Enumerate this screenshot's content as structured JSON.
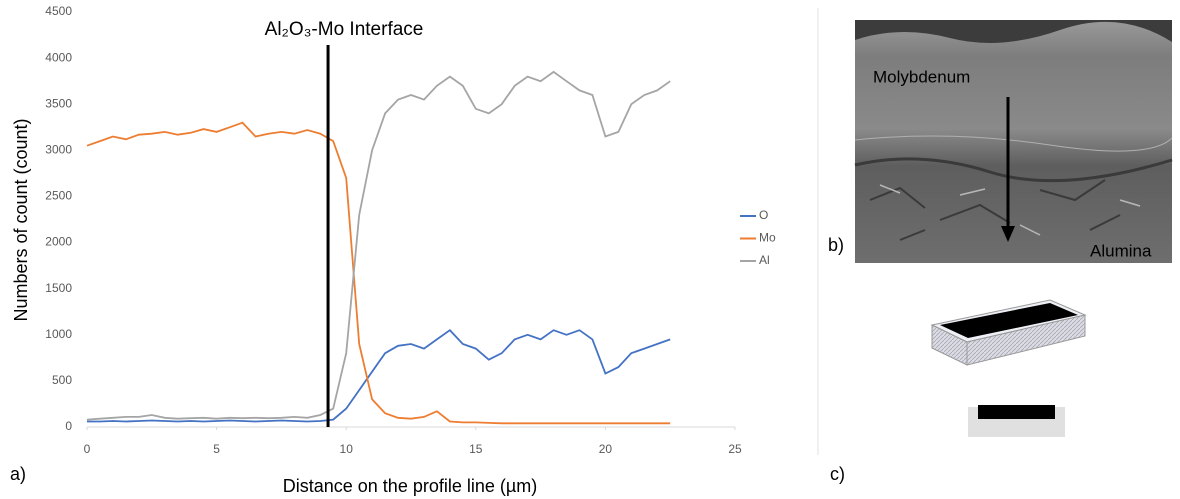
{
  "chart_data": {
    "type": "line",
    "annotation": "Al₂O₃-Mo Interface",
    "interface_x": 9.3,
    "x_label": "Distance on the profile line (µm)",
    "y_label": "Numbers of count (count)",
    "x": [
      0,
      0.5,
      1,
      1.5,
      2,
      2.5,
      3,
      3.5,
      4,
      4.5,
      5,
      5.5,
      6,
      6.5,
      7,
      7.5,
      8,
      8.5,
      9,
      9.5,
      10,
      10.5,
      11,
      11.5,
      12,
      12.5,
      13,
      13.5,
      14,
      14.5,
      15,
      15.5,
      16,
      16.5,
      17,
      17.5,
      18,
      18.5,
      19,
      19.5,
      20,
      20.5,
      21,
      21.5,
      22,
      22.5
    ],
    "series": [
      {
        "name": "O",
        "color": "#4472c4",
        "values": [
          60,
          60,
          65,
          60,
          65,
          70,
          65,
          60,
          65,
          60,
          65,
          70,
          65,
          60,
          65,
          70,
          65,
          60,
          65,
          80,
          200,
          400,
          600,
          800,
          880,
          900,
          850,
          950,
          1050,
          900,
          850,
          730,
          800,
          950,
          1000,
          950,
          1050,
          1000,
          1050,
          950,
          580,
          650,
          800,
          850,
          900,
          950
        ]
      },
      {
        "name": "Mo",
        "color": "#ed7d31",
        "values": [
          3050,
          3100,
          3150,
          3120,
          3170,
          3180,
          3200,
          3170,
          3190,
          3230,
          3200,
          3250,
          3300,
          3150,
          3180,
          3200,
          3180,
          3220,
          3180,
          3100,
          2700,
          900,
          300,
          150,
          100,
          90,
          110,
          170,
          60,
          50,
          50,
          45,
          40,
          40,
          40,
          40,
          40,
          40,
          40,
          40,
          40,
          40,
          40,
          40,
          40,
          40
        ]
      },
      {
        "name": "Al",
        "color": "#a5a5a5",
        "values": [
          80,
          90,
          100,
          110,
          110,
          130,
          100,
          90,
          95,
          100,
          90,
          100,
          95,
          100,
          95,
          100,
          110,
          100,
          130,
          200,
          800,
          2300,
          3000,
          3400,
          3550,
          3600,
          3550,
          3700,
          3800,
          3700,
          3450,
          3400,
          3500,
          3700,
          3800,
          3750,
          3850,
          3750,
          3650,
          3600,
          3150,
          3200,
          3500,
          3600,
          3650,
          3750
        ]
      }
    ],
    "xlim": [
      0,
      25
    ],
    "xticks": [
      0,
      5,
      10,
      15,
      20,
      25
    ],
    "ylim": [
      0,
      4500
    ],
    "yticks": [
      0,
      500,
      1000,
      1500,
      2000,
      2500,
      3000,
      3500,
      4000,
      4500
    ],
    "grid": false,
    "legend": "right"
  },
  "figure": {
    "panel_a": "a)",
    "panel_b": "b)",
    "panel_c": "c)",
    "top_layer": "Molybdenum",
    "bottom_layer": "Alumina"
  }
}
